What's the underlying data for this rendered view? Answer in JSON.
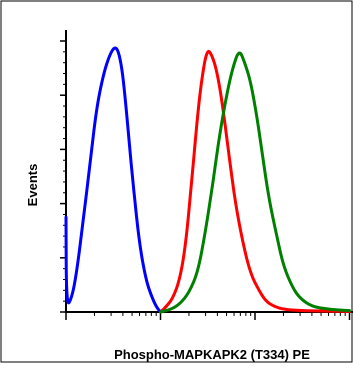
{
  "chart_data": {
    "type": "line",
    "title": "",
    "xlabel": "Phospho-MAPKAPK2 (T334) PE",
    "ylabel": "Events",
    "x_scale": "log",
    "xlim": [
      0.1,
      100
    ],
    "ylim": [
      0,
      100
    ],
    "grid": false,
    "legend": "none",
    "series": [
      {
        "color": "#0000ff",
        "x": [
          0.1,
          0.101,
          0.115,
          0.13,
          0.15,
          0.18,
          0.21,
          0.25,
          0.29,
          0.33,
          0.36,
          0.39,
          0.42,
          0.46,
          0.52,
          0.6,
          0.7,
          0.8,
          0.9,
          1.0
        ],
        "y": [
          35,
          2,
          5,
          15,
          32,
          55,
          75,
          88,
          95,
          98,
          96,
          90,
          80,
          65,
          45,
          25,
          12,
          6,
          2,
          0
        ]
      },
      {
        "color": "#ff0000",
        "x": [
          1.0,
          1.15,
          1.35,
          1.6,
          1.85,
          2.1,
          2.4,
          2.7,
          3.1,
          3.5,
          4.0,
          4.6,
          5.3,
          6.2,
          7.5,
          9.0,
          11,
          13,
          16,
          20,
          30,
          60,
          100
        ],
        "y": [
          0,
          2,
          5,
          12,
          25,
          45,
          68,
          85,
          97,
          95,
          88,
          75,
          58,
          40,
          25,
          14,
          8,
          4,
          2,
          1,
          0.5,
          0.3,
          0.2
        ]
      },
      {
        "color": "#008000",
        "x": [
          1.0,
          1.3,
          1.6,
          2.0,
          2.5,
          3.0,
          3.6,
          4.2,
          5.0,
          5.8,
          6.8,
          7.8,
          9.0,
          10.5,
          12,
          14,
          17,
          20,
          25,
          30,
          40,
          60,
          100
        ],
        "y": [
          0,
          1,
          3,
          7,
          15,
          30,
          48,
          65,
          80,
          90,
          97,
          92,
          85,
          72,
          58,
          42,
          28,
          17,
          9,
          5,
          2,
          1,
          0.5
        ]
      }
    ]
  }
}
